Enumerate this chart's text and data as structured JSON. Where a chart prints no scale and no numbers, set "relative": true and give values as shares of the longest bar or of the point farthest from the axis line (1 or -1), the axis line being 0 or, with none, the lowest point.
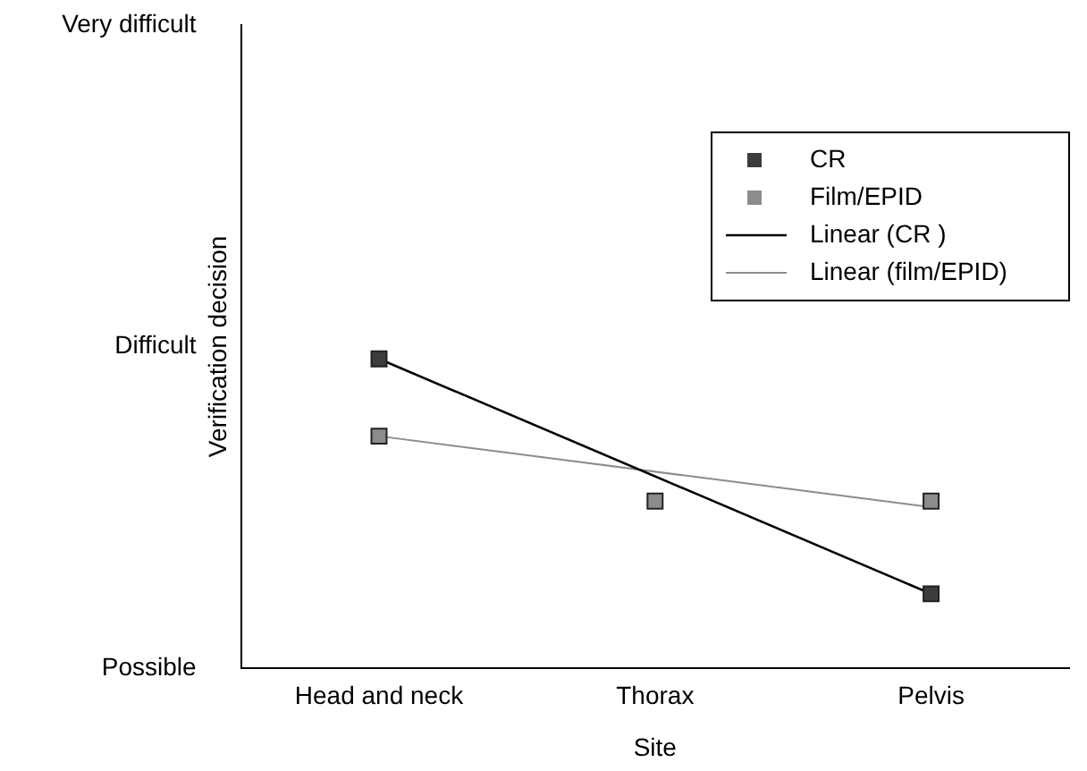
{
  "chart_data": {
    "type": "scatter",
    "xlabel": "Site",
    "ylabel": "Verification decision",
    "relative": true,
    "categories": [
      "Head and neck",
      "Thorax",
      "Pelvis"
    ],
    "series": [
      {
        "name": "CR",
        "color": "#3c3c3c",
        "values": [
          1,
          null,
          0.24
        ]
      },
      {
        "name": "Film/EPID",
        "color": "#8c8c8c",
        "values": [
          0.75,
          0.54,
          0.54
        ]
      },
      {
        "name": "Linear (CR )",
        "type": "line",
        "marker": "none",
        "color": "#000000",
        "x": [
          "Head and neck",
          "Pelvis"
        ],
        "values": [
          1,
          0.24
        ]
      },
      {
        "name": "Linear (film/EPID)",
        "type": "line",
        "marker": "none",
        "color": "#8c8c8c",
        "x": [
          "Head and neck",
          "Pelvis"
        ],
        "values": [
          0.75,
          0.52
        ]
      }
    ],
    "annotations": [
      "Possible",
      "Difficult",
      "Very difficult"
    ],
    "marker": "square",
    "line_style": "solid",
    "legend": "top right"
  }
}
